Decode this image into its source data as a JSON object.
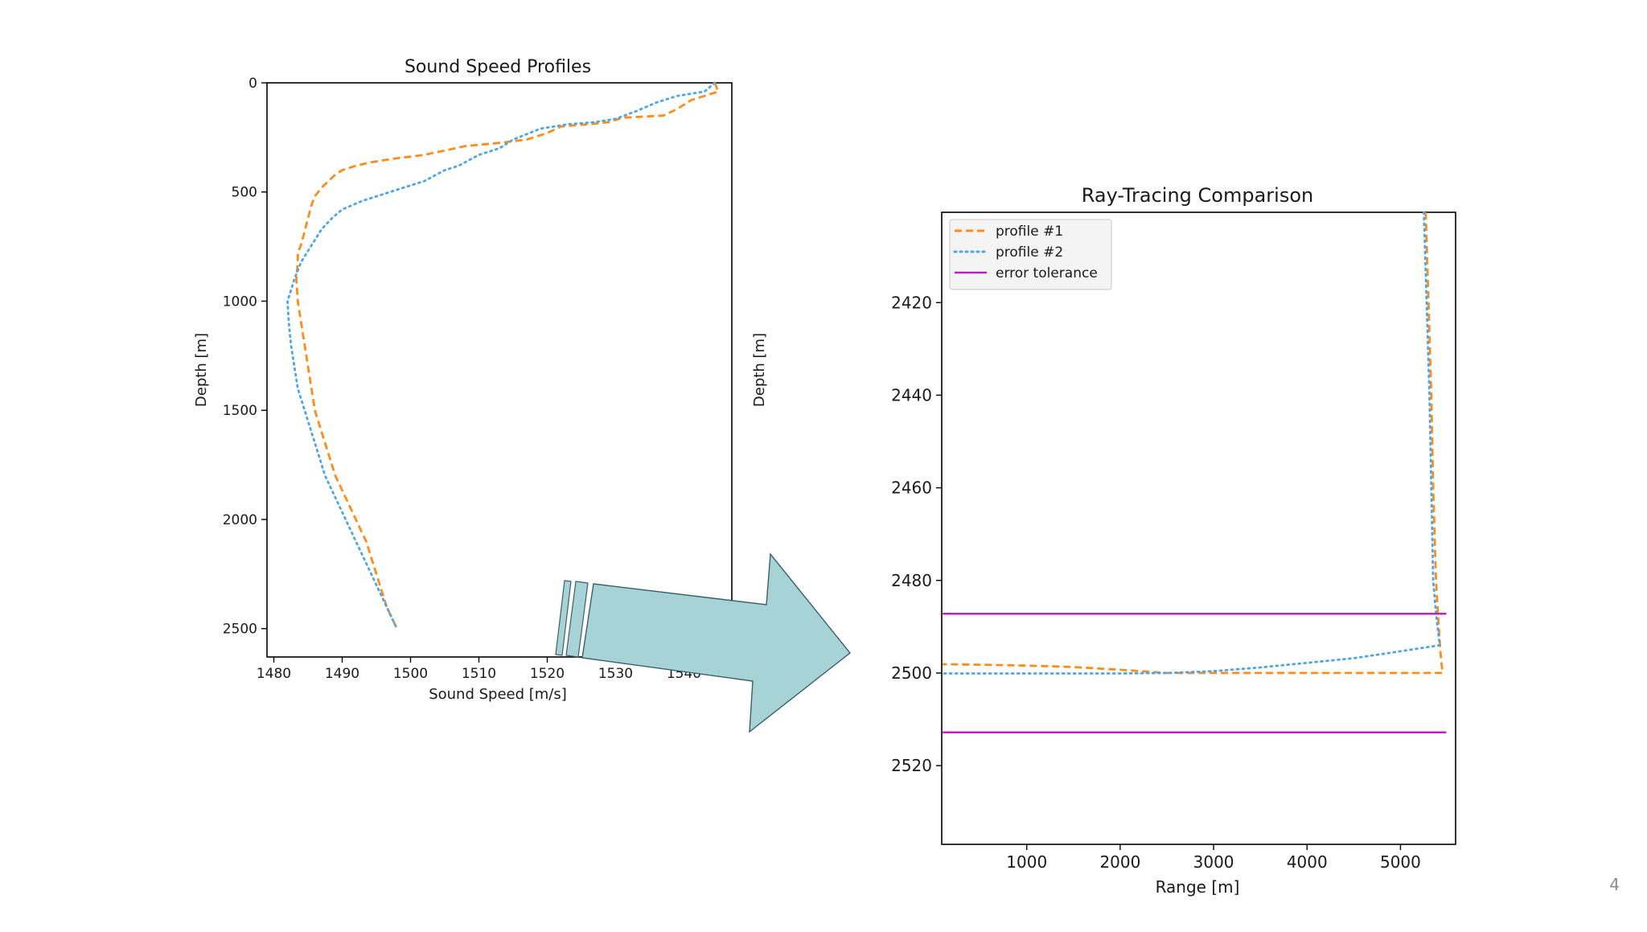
{
  "slide": {
    "page_number": "4"
  },
  "colors": {
    "profile1": "#ff8c1a",
    "profile2": "#4da6e8",
    "tolerance": "#c020c0",
    "arrow_fill": "#a8d3d6",
    "arrow_stroke": "#3a5f6a"
  },
  "chart_data": [
    {
      "type": "line",
      "title": "Sound Speed Profiles",
      "xlabel": "Sound Speed [m/s]",
      "ylabel": "Depth [m]",
      "xlim": [
        1479,
        1547
      ],
      "ylim": [
        2630,
        0
      ],
      "y_inverted": true,
      "xticks": [
        1480,
        1490,
        1500,
        1510,
        1520,
        1530,
        1540
      ],
      "yticks": [
        0,
        500,
        1000,
        1500,
        2000,
        2500
      ],
      "grid": false,
      "series": [
        {
          "name": "profile #1",
          "style": "dashed",
          "color": "#ff8c1a",
          "points": [
            [
              1544.5,
              0
            ],
            [
              1545,
              40
            ],
            [
              1543,
              60
            ],
            [
              1541,
              80
            ],
            [
              1539,
              120
            ],
            [
              1537,
              150
            ],
            [
              1531,
              160
            ],
            [
              1529,
              180
            ],
            [
              1526,
              190
            ],
            [
              1522,
              200
            ],
            [
              1520,
              230
            ],
            [
              1517,
              260
            ],
            [
              1513,
              275
            ],
            [
              1508,
              290
            ],
            [
              1505,
              310
            ],
            [
              1502,
              330
            ],
            [
              1497,
              350
            ],
            [
              1494,
              365
            ],
            [
              1492,
              380
            ],
            [
              1490,
              400
            ],
            [
              1489,
              420
            ],
            [
              1488,
              450
            ],
            [
              1487,
              480
            ],
            [
              1486,
              520
            ],
            [
              1485.5,
              560
            ],
            [
              1485,
              620
            ],
            [
              1484.5,
              680
            ],
            [
              1484,
              740
            ],
            [
              1483.5,
              780
            ],
            [
              1483.5,
              820
            ],
            [
              1483.3,
              900
            ],
            [
              1483.5,
              1000
            ],
            [
              1484,
              1100
            ],
            [
              1484.5,
              1200
            ],
            [
              1485,
              1300
            ],
            [
              1485.5,
              1400
            ],
            [
              1486,
              1500
            ],
            [
              1487,
              1600
            ],
            [
              1488,
              1700
            ],
            [
              1489,
              1800
            ],
            [
              1490.5,
              1900
            ],
            [
              1492,
              2000
            ],
            [
              1493.5,
              2100
            ],
            [
              1494.5,
              2200
            ],
            [
              1495.5,
              2300
            ],
            [
              1496.5,
              2400
            ],
            [
              1498,
              2500
            ]
          ]
        },
        {
          "name": "profile #2",
          "style": "dotted",
          "color": "#4da6e8",
          "points": [
            [
              1544.5,
              0
            ],
            [
              1543,
              40
            ],
            [
              1539,
              60
            ],
            [
              1536,
              90
            ],
            [
              1533,
              130
            ],
            [
              1530,
              165
            ],
            [
              1527,
              180
            ],
            [
              1523,
              190
            ],
            [
              1519,
              210
            ],
            [
              1515,
              260
            ],
            [
              1513,
              300
            ],
            [
              1510,
              330
            ],
            [
              1507,
              380
            ],
            [
              1505,
              400
            ],
            [
              1502,
              450
            ],
            [
              1499,
              480
            ],
            [
              1496,
              510
            ],
            [
              1493,
              540
            ],
            [
              1490,
              580
            ],
            [
              1488.5,
              620
            ],
            [
              1487,
              670
            ],
            [
              1486,
              720
            ],
            [
              1485,
              770
            ],
            [
              1484,
              820
            ],
            [
              1483,
              900
            ],
            [
              1482.5,
              950
            ],
            [
              1482,
              1000
            ],
            [
              1482.2,
              1100
            ],
            [
              1482.5,
              1200
            ],
            [
              1483,
              1300
            ],
            [
              1483.5,
              1400
            ],
            [
              1484.5,
              1500
            ],
            [
              1485.5,
              1600
            ],
            [
              1486.5,
              1700
            ],
            [
              1487.5,
              1800
            ],
            [
              1489,
              1900
            ],
            [
              1490.5,
              2000
            ],
            [
              1492,
              2100
            ],
            [
              1493.5,
              2200
            ],
            [
              1495,
              2300
            ],
            [
              1496.5,
              2400
            ],
            [
              1498,
              2500
            ]
          ]
        }
      ]
    },
    {
      "type": "line",
      "title": "Ray-Tracing Comparison",
      "xlabel": "Range [m]",
      "ylabel": "Depth [m]",
      "xlim": [
        90,
        5590
      ],
      "ylim": [
        2537,
        2400.5
      ],
      "y_inverted": true,
      "xticks": [
        1000,
        2000,
        3000,
        4000,
        5000
      ],
      "yticks": [
        2420,
        2440,
        2460,
        2480,
        2500,
        2520
      ],
      "grid": false,
      "legend_position": "top-left",
      "series": [
        {
          "name": "profile #1",
          "style": "dashed",
          "color": "#ff8c1a",
          "points": [
            [
              5270,
              2400.5
            ],
            [
              5300,
              2420
            ],
            [
              5330,
              2440
            ],
            [
              5350,
              2460
            ],
            [
              5380,
              2480
            ],
            [
              5400,
              2487
            ],
            [
              5430,
              2496
            ],
            [
              5450,
              2500
            ],
            [
              5000,
              2500
            ],
            [
              4000,
              2500
            ],
            [
              3000,
              2500
            ],
            [
              2500,
              2500
            ],
            [
              2000,
              2499.3
            ],
            [
              1500,
              2498.7
            ],
            [
              1000,
              2498.4
            ],
            [
              500,
              2498.2
            ],
            [
              100,
              2498.1
            ]
          ]
        },
        {
          "name": "profile #2",
          "style": "dotted",
          "color": "#4da6e8",
          "points": [
            [
              5250,
              2400.5
            ],
            [
              5280,
              2420
            ],
            [
              5310,
              2440
            ],
            [
              5330,
              2460
            ],
            [
              5350,
              2480
            ],
            [
              5380,
              2487
            ],
            [
              5420,
              2494
            ],
            [
              5000,
              2495.3
            ],
            [
              4500,
              2496.8
            ],
            [
              4000,
              2497.8
            ],
            [
              3500,
              2498.8
            ],
            [
              3000,
              2499.6
            ],
            [
              2500,
              2500
            ],
            [
              2000,
              2500.1
            ],
            [
              1000,
              2500.1
            ],
            [
              100,
              2500.1
            ]
          ]
        },
        {
          "name": "error tolerance",
          "style": "solid",
          "color": "#c020c0",
          "segments": [
            [
              [
                100,
                2487.2
              ],
              [
                5490,
                2487.2
              ]
            ],
            [
              [
                100,
                2512.8
              ],
              [
                5490,
                2512.8
              ]
            ]
          ]
        }
      ]
    }
  ]
}
